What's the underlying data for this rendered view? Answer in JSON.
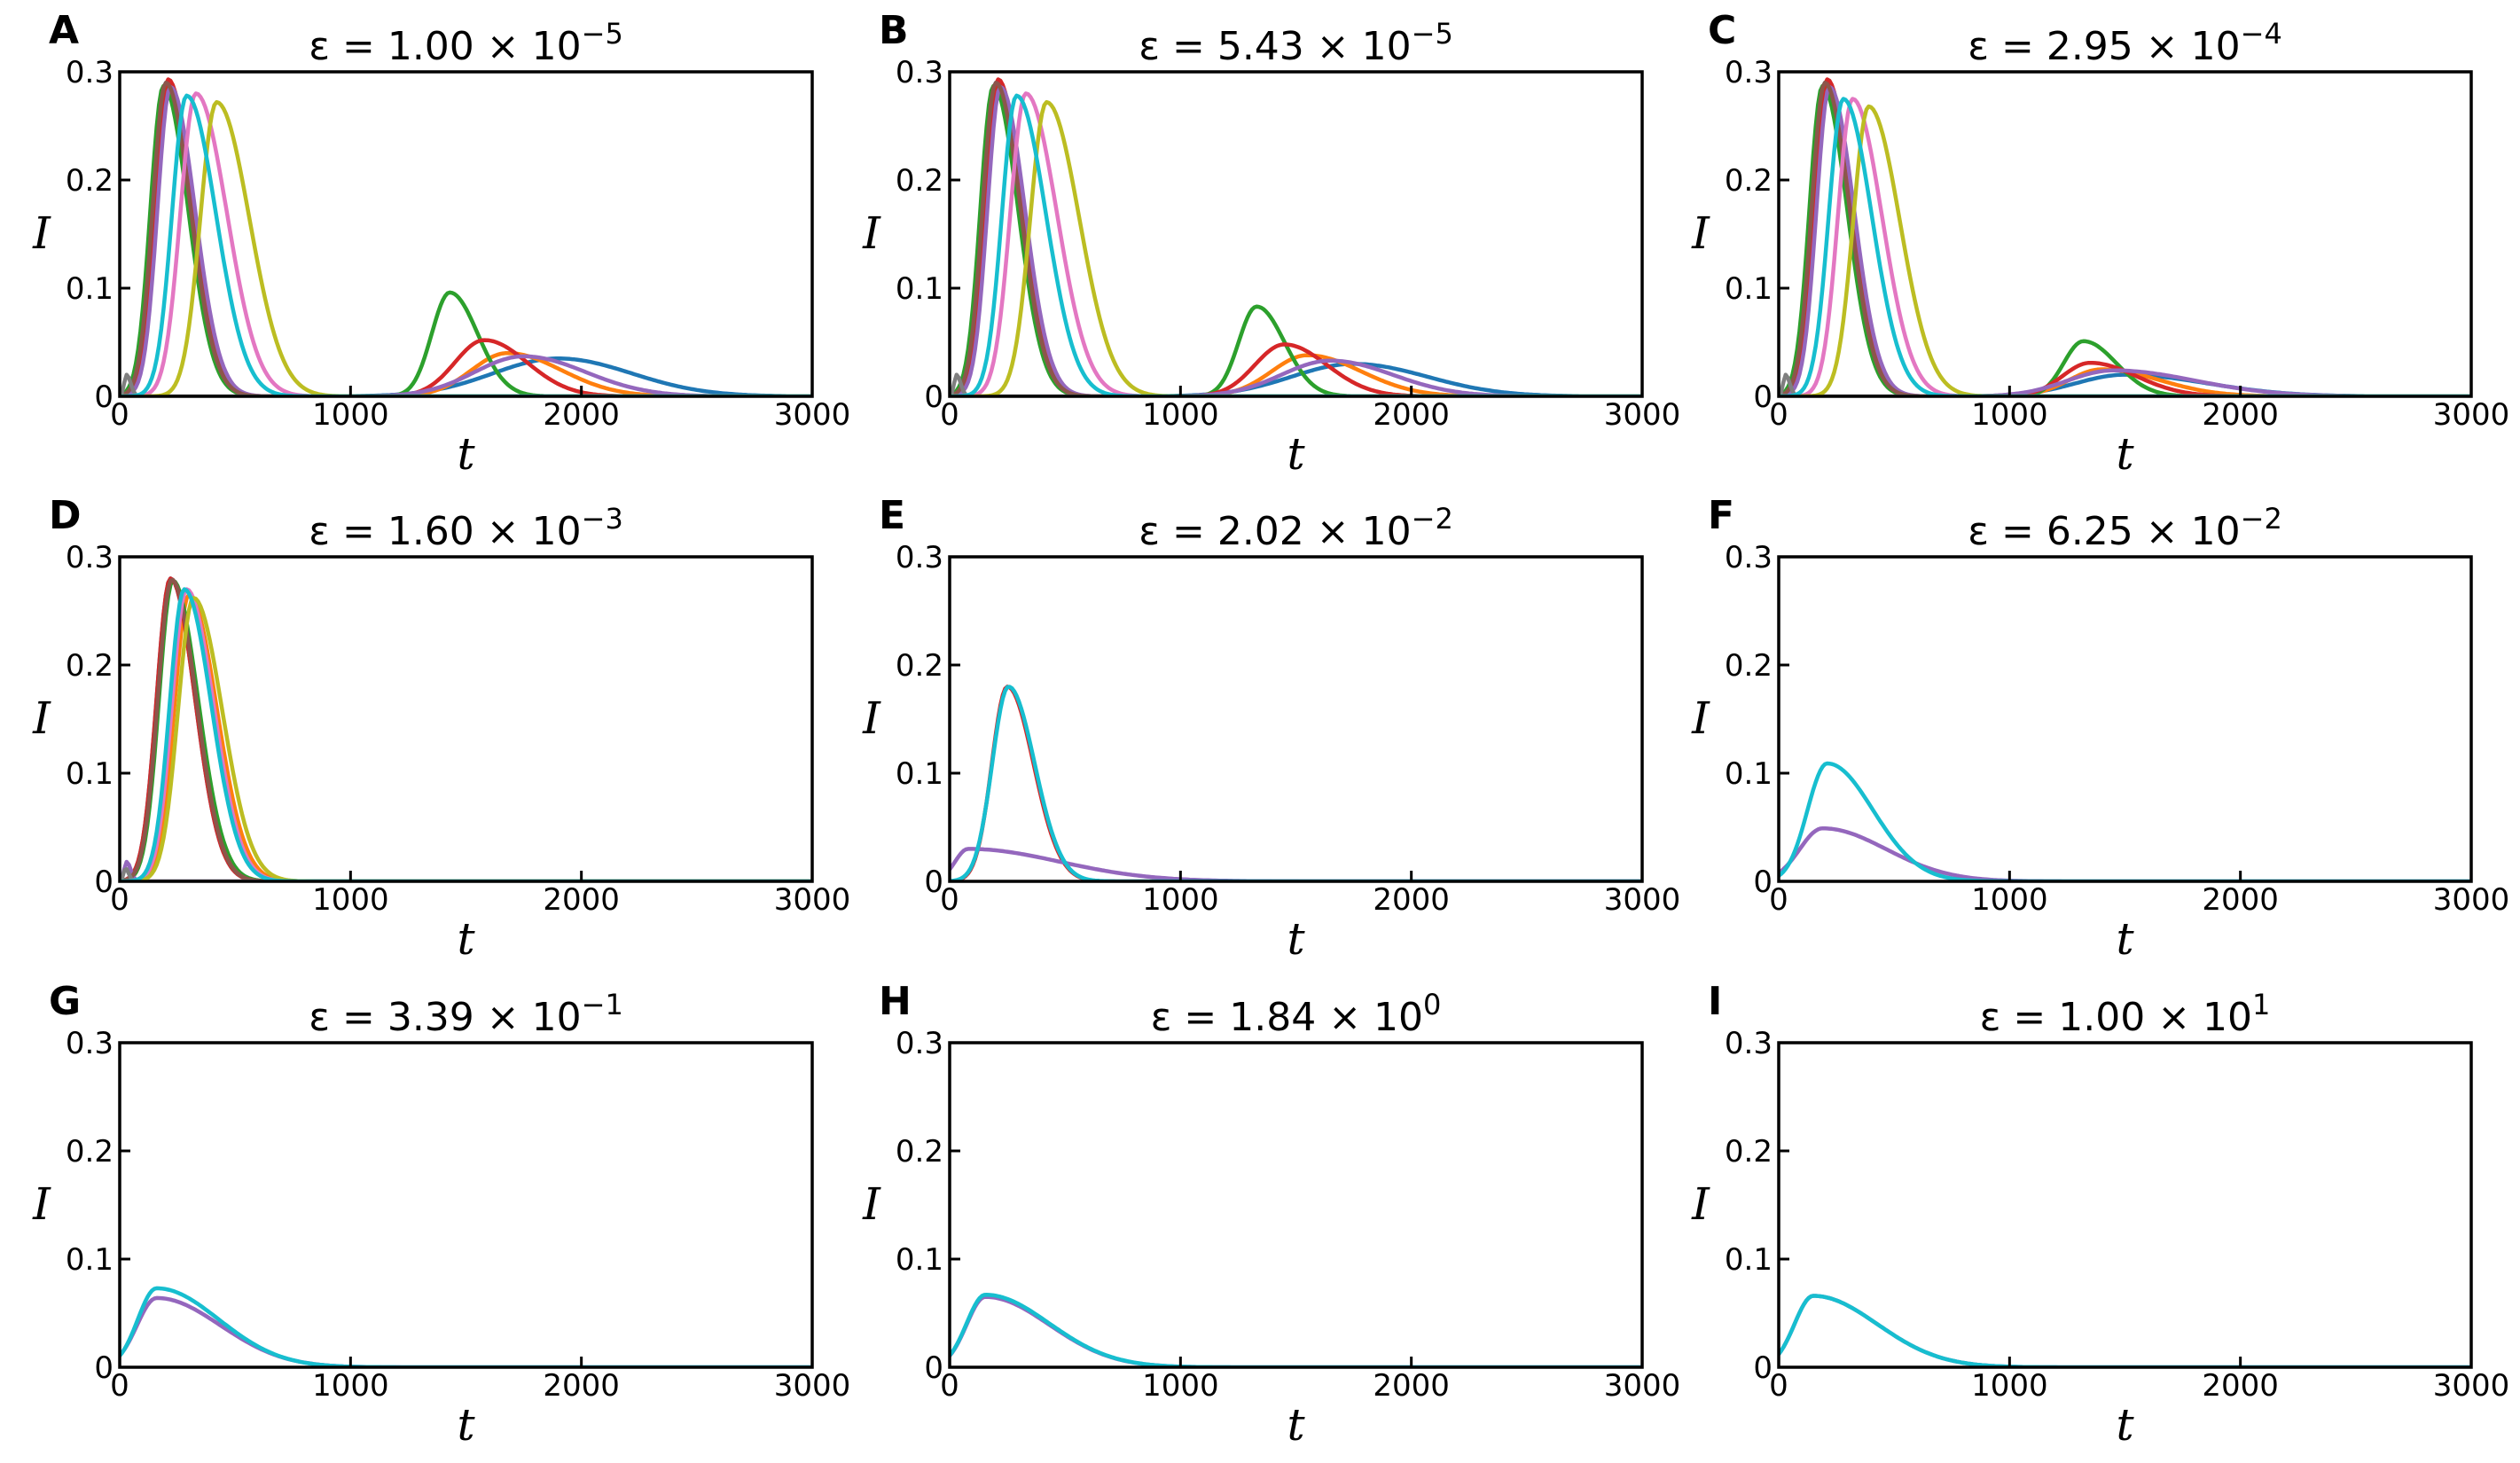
{
  "figure": {
    "panels": [
      {
        "letter": "A",
        "eps_mantissa": "1.00",
        "eps_exponent": "−5"
      },
      {
        "letter": "B",
        "eps_mantissa": "5.43",
        "eps_exponent": "−5"
      },
      {
        "letter": "C",
        "eps_mantissa": "2.95",
        "eps_exponent": "−4"
      },
      {
        "letter": "D",
        "eps_mantissa": "1.60",
        "eps_exponent": "−3"
      },
      {
        "letter": "E",
        "eps_mantissa": "2.02",
        "eps_exponent": "−2"
      },
      {
        "letter": "F",
        "eps_mantissa": "6.25",
        "eps_exponent": "−2"
      },
      {
        "letter": "G",
        "eps_mantissa": "3.39",
        "eps_exponent": "−1"
      },
      {
        "letter": "H",
        "eps_mantissa": "1.84",
        "eps_exponent": "0"
      },
      {
        "letter": "I",
        "eps_mantissa": "1.00",
        "eps_exponent": "1"
      }
    ],
    "title_prefix": "ε = ",
    "title_times": " × 10",
    "xlabel": "t",
    "ylabel": "I",
    "xticks": [
      0,
      1000,
      2000,
      3000
    ],
    "yticks": [
      0,
      0.1,
      0.2,
      0.3
    ],
    "ytick_labels": [
      "0",
      "0.1",
      "0.2",
      "0.3"
    ],
    "colors": [
      "#1f77b4",
      "#ff7f0e",
      "#2ca02c",
      "#d62728",
      "#9467bd",
      "#8c564b",
      "#e377c2",
      "#7f7f7f",
      "#bcbd22",
      "#17becf"
    ]
  },
  "chart_data": [
    {
      "type": "line",
      "title": "ε = 1.00 × 10^−5",
      "xlabel": "t",
      "ylabel": "I",
      "xlim": [
        0,
        3000
      ],
      "ylim": [
        0,
        0.3
      ],
      "series": [
        {
          "color": "#1f77b4",
          "peaks": [
            [
              200,
              0.29,
              80,
              150
            ],
            [
              1900,
              0.035,
              400,
              450
            ]
          ]
        },
        {
          "color": "#ff7f0e",
          "peaks": [
            [
              205,
              0.288,
              80,
              150
            ],
            [
              1680,
              0.04,
              220,
              330
            ]
          ]
        },
        {
          "color": "#2ca02c",
          "peaks": [
            [
              190,
              0.287,
              80,
              150
            ],
            [
              1430,
              0.096,
              110,
              170
            ]
          ]
        },
        {
          "color": "#d62728",
          "peaks": [
            [
              210,
              0.293,
              80,
              150
            ],
            [
              1580,
              0.052,
              180,
              260
            ]
          ]
        },
        {
          "color": "#9467bd",
          "peaks": [
            [
              220,
              0.286,
              80,
              150
            ],
            [
              1750,
              0.037,
              300,
              380
            ]
          ]
        },
        {
          "color": "#8c564b",
          "peaks": [
            [
              200,
              0.29,
              80,
              150
            ]
          ]
        },
        {
          "color": "#e377c2",
          "peaks": [
            [
              330,
              0.28,
              95,
              190
            ]
          ]
        },
        {
          "color": "#7f7f7f",
          "peaks": [
            [
              30,
              0.02,
              15,
              25
            ]
          ]
        },
        {
          "color": "#bcbd22",
          "peaks": [
            [
              420,
              0.272,
              100,
              200
            ]
          ]
        },
        {
          "color": "#17becf",
          "peaks": [
            [
              290,
              0.278,
              90,
              180
            ]
          ]
        }
      ]
    },
    {
      "type": "line",
      "title": "ε = 5.43 × 10^−5",
      "xlabel": "t",
      "ylabel": "I",
      "xlim": [
        0,
        3000
      ],
      "ylim": [
        0,
        0.3
      ],
      "series": [
        {
          "color": "#1f77b4",
          "peaks": [
            [
              200,
              0.29,
              80,
              150
            ],
            [
              1750,
              0.03,
              380,
              450
            ]
          ]
        },
        {
          "color": "#ff7f0e",
          "peaks": [
            [
              205,
              0.288,
              80,
              150
            ],
            [
              1550,
              0.038,
              220,
              330
            ]
          ]
        },
        {
          "color": "#2ca02c",
          "peaks": [
            [
              190,
              0.287,
              80,
              150
            ],
            [
              1330,
              0.083,
              110,
              170
            ]
          ]
        },
        {
          "color": "#d62728",
          "peaks": [
            [
              210,
              0.293,
              80,
              150
            ],
            [
              1450,
              0.048,
              180,
              260
            ]
          ]
        },
        {
          "color": "#9467bd",
          "peaks": [
            [
              220,
              0.286,
              80,
              150
            ],
            [
              1650,
              0.033,
              300,
              380
            ]
          ]
        },
        {
          "color": "#8c564b",
          "peaks": [
            [
              200,
              0.29,
              80,
              150
            ]
          ]
        },
        {
          "color": "#e377c2",
          "peaks": [
            [
              330,
              0.28,
              95,
              190
            ]
          ]
        },
        {
          "color": "#7f7f7f",
          "peaks": [
            [
              30,
              0.02,
              15,
              25
            ]
          ]
        },
        {
          "color": "#bcbd22",
          "peaks": [
            [
              420,
              0.272,
              100,
              200
            ]
          ]
        },
        {
          "color": "#17becf",
          "peaks": [
            [
              290,
              0.278,
              90,
              180
            ]
          ]
        }
      ]
    },
    {
      "type": "line",
      "title": "ε = 2.95 × 10^−4",
      "xlabel": "t",
      "ylabel": "I",
      "xlim": [
        0,
        3000
      ],
      "ylim": [
        0,
        0.3
      ],
      "series": [
        {
          "color": "#1f77b4",
          "peaks": [
            [
              200,
              0.29,
              80,
              150
            ],
            [
              1500,
              0.02,
              300,
              500
            ]
          ]
        },
        {
          "color": "#ff7f0e",
          "peaks": [
            [
              205,
              0.288,
              80,
              150
            ],
            [
              1400,
              0.025,
              200,
              350
            ]
          ]
        },
        {
          "color": "#2ca02c",
          "peaks": [
            [
              190,
              0.287,
              80,
              150
            ],
            [
              1320,
              0.051,
              120,
              200
            ]
          ]
        },
        {
          "color": "#d62728",
          "peaks": [
            [
              210,
              0.293,
              80,
              150
            ],
            [
              1350,
              0.031,
              170,
              280
            ]
          ]
        },
        {
          "color": "#9467bd",
          "peaks": [
            [
              220,
              0.286,
              80,
              150
            ],
            [
              1450,
              0.024,
              280,
              500
            ]
          ]
        },
        {
          "color": "#8c564b",
          "peaks": [
            [
              200,
              0.29,
              80,
              150
            ]
          ]
        },
        {
          "color": "#e377c2",
          "peaks": [
            [
              320,
              0.275,
              90,
              180
            ]
          ]
        },
        {
          "color": "#7f7f7f",
          "peaks": [
            [
              30,
              0.02,
              15,
              25
            ]
          ]
        },
        {
          "color": "#bcbd22",
          "peaks": [
            [
              390,
              0.268,
              95,
              190
            ]
          ]
        },
        {
          "color": "#17becf",
          "peaks": [
            [
              280,
              0.275,
              90,
              175
            ]
          ]
        }
      ]
    },
    {
      "type": "line",
      "title": "ε = 1.60 × 10^−3",
      "xlabel": "t",
      "ylabel": "I",
      "xlim": [
        0,
        3000
      ],
      "ylim": [
        0,
        0.3
      ],
      "series": [
        {
          "color": "#1f77b4",
          "peaks": [
            [
              220,
              0.28,
              85,
              150
            ]
          ]
        },
        {
          "color": "#ff7f0e",
          "peaks": [
            [
              300,
              0.265,
              90,
              170
            ]
          ]
        },
        {
          "color": "#2ca02c",
          "peaks": [
            [
              230,
              0.278,
              85,
              155
            ]
          ]
        },
        {
          "color": "#d62728",
          "peaks": [
            [
              220,
              0.28,
              85,
              150
            ]
          ]
        },
        {
          "color": "#9467bd",
          "peaks": [
            [
              30,
              0.018,
              15,
              25
            ]
          ]
        },
        {
          "color": "#8c564b",
          "peaks": [
            [
              225,
              0.279,
              85,
              150
            ]
          ]
        },
        {
          "color": "#e377c2",
          "peaks": [
            [
              290,
              0.27,
              90,
              165
            ]
          ]
        },
        {
          "color": "#7f7f7f",
          "peaks": [
            [
              25,
              0.012,
              12,
              20
            ]
          ]
        },
        {
          "color": "#bcbd22",
          "peaks": [
            [
              320,
              0.262,
              95,
              175
            ]
          ]
        },
        {
          "color": "#17becf",
          "peaks": [
            [
              280,
              0.27,
              90,
              165
            ]
          ]
        }
      ]
    },
    {
      "type": "line",
      "title": "ε = 2.02 × 10^−2",
      "xlabel": "t",
      "ylabel": "I",
      "xlim": [
        0,
        3000
      ],
      "ylim": [
        0,
        0.3
      ],
      "series": [
        {
          "color": "#d62728",
          "peaks": [
            [
              250,
              0.18,
              95,
              160
            ]
          ]
        },
        {
          "color": "#9467bd",
          "peaks": [
            [
              80,
              0.03,
              80,
              560
            ]
          ]
        },
        {
          "color": "#17becf",
          "peaks": [
            [
              255,
              0.18,
              100,
              160
            ]
          ]
        }
      ]
    },
    {
      "type": "line",
      "title": "ε = 6.25 × 10^−2",
      "xlabel": "t",
      "ylabel": "I",
      "xlim": [
        0,
        3000
      ],
      "ylim": [
        0,
        0.3
      ],
      "series": [
        {
          "color": "#9467bd",
          "peaks": [
            [
              190,
              0.049,
              140,
              390
            ]
          ]
        },
        {
          "color": "#17becf",
          "peaks": [
            [
              210,
              0.109,
              120,
              280
            ]
          ]
        }
      ]
    },
    {
      "type": "line",
      "title": "ε = 3.39 × 10^−1",
      "xlabel": "t",
      "ylabel": "I",
      "xlim": [
        0,
        3000
      ],
      "ylim": [
        0,
        0.3
      ],
      "series": [
        {
          "color": "#9467bd",
          "peaks": [
            [
              160,
              0.064,
              120,
              390
            ]
          ]
        },
        {
          "color": "#17becf",
          "peaks": [
            [
              160,
              0.073,
              115,
              380
            ]
          ]
        }
      ]
    },
    {
      "type": "line",
      "title": "ε = 1.84 × 10^0",
      "xlabel": "t",
      "ylabel": "I",
      "xlim": [
        0,
        3000
      ],
      "ylim": [
        0,
        0.3
      ],
      "series": [
        {
          "color": "#9467bd",
          "peaks": [
            [
              155,
              0.065,
              115,
              390
            ]
          ]
        },
        {
          "color": "#17becf",
          "peaks": [
            [
              155,
              0.067,
              115,
              390
            ]
          ]
        }
      ]
    },
    {
      "type": "line",
      "title": "ε = 1.00 × 10^1",
      "xlabel": "t",
      "ylabel": "I",
      "xlim": [
        0,
        3000
      ],
      "ylim": [
        0,
        0.3
      ],
      "series": [
        {
          "color": "#9467bd",
          "peaks": [
            [
              150,
              0.066,
              115,
              390
            ]
          ]
        },
        {
          "color": "#17becf",
          "peaks": [
            [
              150,
              0.066,
              115,
              390
            ]
          ]
        }
      ]
    }
  ]
}
